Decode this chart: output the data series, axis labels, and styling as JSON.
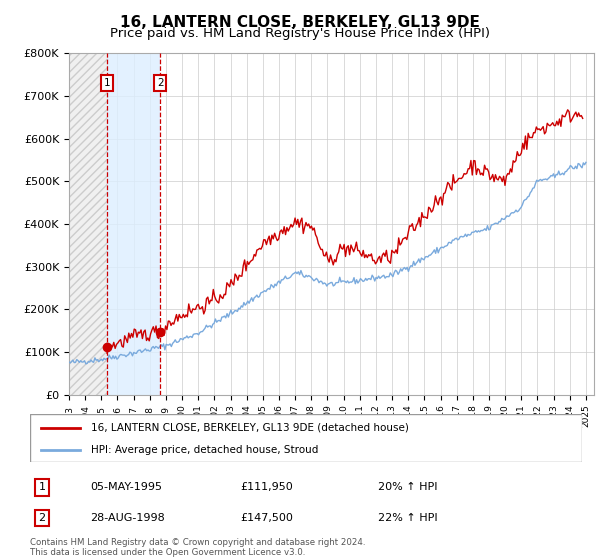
{
  "title": "16, LANTERN CLOSE, BERKELEY, GL13 9DE",
  "subtitle": "Price paid vs. HM Land Registry's House Price Index (HPI)",
  "ylim": [
    0,
    800000
  ],
  "yticks": [
    0,
    100000,
    200000,
    300000,
    400000,
    500000,
    600000,
    700000,
    800000
  ],
  "ytick_labels": [
    "£0",
    "£100K",
    "£200K",
    "£300K",
    "£400K",
    "£500K",
    "£600K",
    "£700K",
    "£800K"
  ],
  "x_start_year": 1993,
  "x_end_year": 2025,
  "hpi_color": "#7aaadd",
  "price_color": "#cc0000",
  "sale1_year": 1995.35,
  "sale1_price": 111950,
  "sale2_year": 1998.65,
  "sale2_price": 147500,
  "legend_line1": "16, LANTERN CLOSE, BERKELEY, GL13 9DE (detached house)",
  "legend_line2": "HPI: Average price, detached house, Stroud",
  "sale1_date": "05-MAY-1995",
  "sale1_display_price": "£111,950",
  "sale1_hpi": "20% ↑ HPI",
  "sale2_date": "28-AUG-1998",
  "sale2_display_price": "£147,500",
  "sale2_hpi": "22% ↑ HPI",
  "footer": "Contains HM Land Registry data © Crown copyright and database right 2024.\nThis data is licensed under the Open Government Licence v3.0.",
  "shaded_region_color": "#ddeeff",
  "hatch_color": "#cccccc",
  "title_fontsize": 11,
  "subtitle_fontsize": 9.5
}
